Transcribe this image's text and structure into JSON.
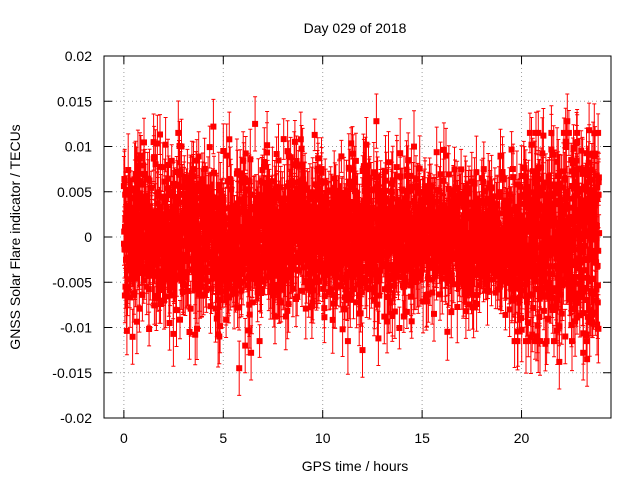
{
  "chart_data": {
    "type": "scatter",
    "title": "Day 029 of 2018",
    "xlabel": "GPS time / hours",
    "ylabel": "GNSS Solar Flare indicator / TECUs",
    "xlim": [
      -1,
      24.5
    ],
    "ylim": [
      -0.02,
      0.02
    ],
    "grid": true,
    "series_color": "#ff0000",
    "xticks": [
      0,
      5,
      10,
      15,
      20
    ],
    "xtick_labels": [
      "0",
      "5",
      "10",
      "15",
      "20"
    ],
    "yticks": [
      0.02,
      0.015,
      0.01,
      0.005,
      0,
      -0.005,
      -0.01,
      -0.015,
      -0.02
    ],
    "ytick_labels": [
      "0.02",
      "0.015",
      "0.01",
      "0.005",
      "0",
      "-0.005",
      "-0.01",
      "-0.015",
      "-0.02"
    ],
    "series": [
      {
        "name": "GNSS Solar Flare indicator",
        "marker": "square",
        "error_bars": true,
        "x_range": [
          0,
          23.9
        ],
        "approx_points": 2880,
        "typical_spread": 0.004,
        "typical_error": 0.003,
        "points": [
          {
            "x": 0.1,
            "y": 0.002,
            "err": 0.004
          },
          {
            "x": 2.1,
            "y": 0.0102,
            "err": 0.003
          },
          {
            "x": 2.3,
            "y": -0.0095,
            "err": 0.003
          },
          {
            "x": 2.9,
            "y": 0.01,
            "err": 0.003
          },
          {
            "x": 3.3,
            "y": -0.0105,
            "err": 0.003
          },
          {
            "x": 3.5,
            "y": 0.0075,
            "err": 0.003
          },
          {
            "x": 4.5,
            "y": 0.0122,
            "err": 0.003
          },
          {
            "x": 4.8,
            "y": -0.011,
            "err": 0.003
          },
          {
            "x": 5.0,
            "y": 0.0095,
            "err": 0.003
          },
          {
            "x": 5.3,
            "y": 0.0108,
            "err": 0.003
          },
          {
            "x": 5.8,
            "y": -0.0145,
            "err": 0.003
          },
          {
            "x": 6.1,
            "y": -0.012,
            "err": 0.003
          },
          {
            "x": 6.4,
            "y": -0.0128,
            "err": 0.003
          },
          {
            "x": 6.6,
            "y": 0.0125,
            "err": 0.003
          },
          {
            "x": 7.6,
            "y": -0.0088,
            "err": 0.003
          },
          {
            "x": 8.9,
            "y": 0.0108,
            "err": 0.003
          },
          {
            "x": 9.1,
            "y": 0.0052,
            "err": 0.003
          },
          {
            "x": 11.0,
            "y": -0.0102,
            "err": 0.003
          },
          {
            "x": 11.5,
            "y": 0.0092,
            "err": 0.003
          },
          {
            "x": 12.0,
            "y": -0.0125,
            "err": 0.003
          },
          {
            "x": 12.2,
            "y": 0.0102,
            "err": 0.003
          },
          {
            "x": 12.7,
            "y": 0.0128,
            "err": 0.003
          },
          {
            "x": 12.8,
            "y": -0.0112,
            "err": 0.003
          },
          {
            "x": 13.1,
            "y": -0.0088,
            "err": 0.003
          },
          {
            "x": 14.3,
            "y": 0.0085,
            "err": 0.003
          },
          {
            "x": 15.6,
            "y": -0.0085,
            "err": 0.003
          },
          {
            "x": 16.2,
            "y": 0.009,
            "err": 0.003
          },
          {
            "x": 17.2,
            "y": -0.0082,
            "err": 0.003
          },
          {
            "x": 18.1,
            "y": 0.0075,
            "err": 0.003
          },
          {
            "x": 19.4,
            "y": -0.008,
            "err": 0.003
          },
          {
            "x": 20.5,
            "y": 0.0102,
            "err": 0.003
          },
          {
            "x": 20.8,
            "y": -0.0098,
            "err": 0.003
          },
          {
            "x": 21.1,
            "y": 0.0112,
            "err": 0.003
          },
          {
            "x": 21.2,
            "y": -0.0118,
            "err": 0.003
          },
          {
            "x": 21.5,
            "y": 0.0115,
            "err": 0.003
          },
          {
            "x": 21.9,
            "y": -0.0138,
            "err": 0.003
          },
          {
            "x": 22.2,
            "y": -0.011,
            "err": 0.003
          },
          {
            "x": 22.3,
            "y": 0.0128,
            "err": 0.003
          },
          {
            "x": 22.8,
            "y": 0.0105,
            "err": 0.003
          },
          {
            "x": 23.1,
            "y": -0.0128,
            "err": 0.003
          },
          {
            "x": 23.3,
            "y": -0.0135,
            "err": 0.003
          },
          {
            "x": 23.4,
            "y": 0.0118,
            "err": 0.003
          },
          {
            "x": 23.7,
            "y": 0.0092,
            "err": 0.003
          }
        ]
      }
    ]
  }
}
